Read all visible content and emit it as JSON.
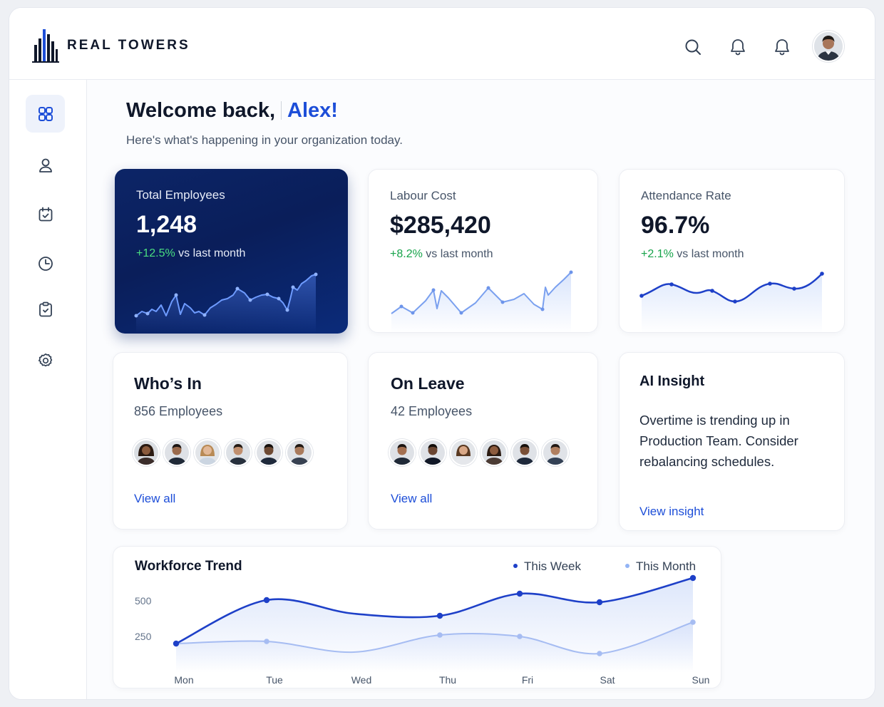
{
  "brand": {
    "name": "REAL TOWERS"
  },
  "header": {
    "icons": [
      "search-icon",
      "bell-icon",
      "bell-icon"
    ]
  },
  "sidebar": {
    "items": [
      {
        "icon": "dashboard-icon",
        "active": true
      },
      {
        "icon": "user-icon"
      },
      {
        "icon": "calendar-check-icon"
      },
      {
        "icon": "clock-icon"
      },
      {
        "icon": "clipboard-icon"
      },
      {
        "icon": "gear-icon"
      }
    ]
  },
  "welcome": {
    "greeting": "Welcome back,",
    "name": "Alex!",
    "subtitle": "Here's what's happening in your organization today."
  },
  "stats": [
    {
      "label": "Total Employees",
      "value": "1,248",
      "delta": "+12.5%",
      "delta_suffix": " vs last month"
    },
    {
      "label": "Labour Cost",
      "value": "$285,420",
      "delta": "+8.2%",
      "delta_suffix": " vs last month"
    },
    {
      "label": "Attendance Rate",
      "value": "96.7%",
      "delta": "+2.1%",
      "delta_suffix": " vs last month"
    }
  ],
  "whos_in": {
    "title": "Who’s In",
    "count": "856 Employees",
    "link": "View all"
  },
  "on_leave": {
    "title": "On Leave",
    "count": "42 Employees",
    "link": "View all"
  },
  "ai_insight": {
    "title": "AI Insight",
    "text": "Overtime is trending up in Production Team. Consider rebalancing schedules.",
    "link": "View insight"
  },
  "colors": {
    "accent": "#1d4ed8",
    "dark_card": "#0c2567",
    "positive": "#16a34a",
    "series_week": "#1e40c8",
    "series_month": "#a7bdf2"
  },
  "chart_data": {
    "type": "line",
    "title": "Workforce Trend",
    "categories": [
      "Mon",
      "Tue",
      "Wed",
      "Thu",
      "Fri",
      "Sat",
      "Sun"
    ],
    "y_ticks": [
      "500",
      "250"
    ],
    "ylim": [
      0,
      700
    ],
    "series": [
      {
        "name": "This Week",
        "color": "#1e40c8",
        "values": [
          200,
          505,
          410,
          395,
          550,
          490,
          660
        ]
      },
      {
        "name": "This Month",
        "color": "#a7bdf2",
        "values": [
          200,
          215,
          140,
          260,
          250,
          130,
          350
        ]
      }
    ],
    "legend": "top-right",
    "grid": false
  }
}
